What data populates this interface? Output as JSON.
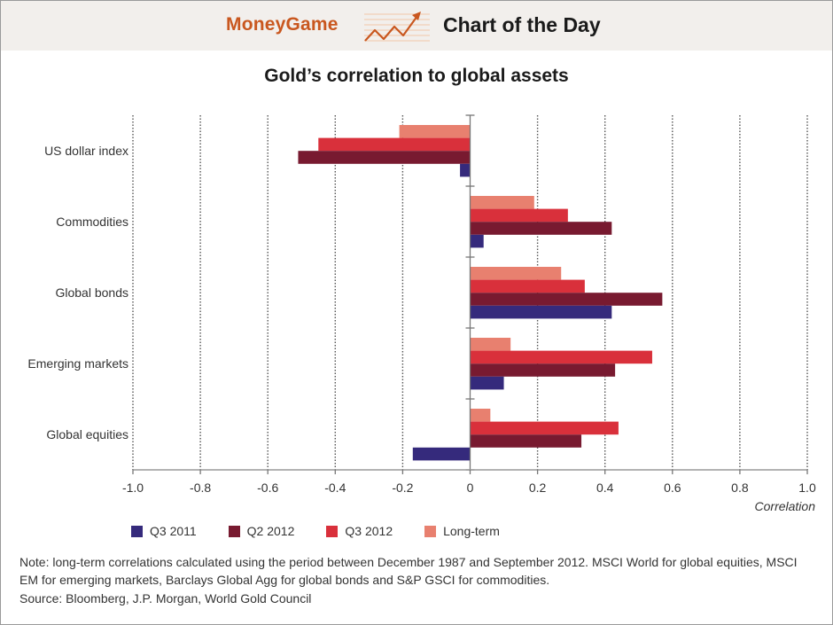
{
  "header": {
    "brand": "MoneyGame",
    "section": "Chart of the Day",
    "logo_icon": "rising-line-chart-icon",
    "brand_color": "#c9571f"
  },
  "chart_data": {
    "type": "bar",
    "orientation": "horizontal",
    "title": "Gold’s correlation to global assets",
    "xlabel": "Correlation",
    "ylabel": "",
    "xlim": [
      -1.0,
      1.0
    ],
    "x_ticks": [
      "-1.0",
      "-0.8",
      "-0.6",
      "-0.4",
      "-0.2",
      "0",
      "0.2",
      "0.4",
      "0.6",
      "0.8",
      "1.0"
    ],
    "x_tick_values": [
      -1.0,
      -0.8,
      -0.6,
      -0.4,
      -0.2,
      0,
      0.2,
      0.4,
      0.6,
      0.8,
      1.0
    ],
    "grid": "vertical dotted",
    "legend_position": "bottom-left",
    "categories": [
      "US dollar index",
      "Commodities",
      "Global bonds",
      "Emerging markets",
      "Global equities"
    ],
    "series": [
      {
        "name": "Long-term",
        "color": "#e8806f",
        "values": [
          -0.21,
          0.19,
          0.27,
          0.12,
          0.06
        ]
      },
      {
        "name": "Q3 2012",
        "color": "#d9303b",
        "values": [
          -0.45,
          0.29,
          0.34,
          0.54,
          0.44
        ]
      },
      {
        "name": "Q2 2012",
        "color": "#781a30",
        "values": [
          -0.51,
          0.42,
          0.57,
          0.43,
          0.33
        ]
      },
      {
        "name": "Q3 2011",
        "color": "#352a7c",
        "values": [
          -0.03,
          0.04,
          0.42,
          0.1,
          -0.17
        ]
      }
    ],
    "legend": [
      "Q3 2011",
      "Q2 2012",
      "Q3 2012",
      "Long-term"
    ]
  },
  "footer": {
    "note": "Note: long-term correlations calculated using the period between December 1987 and September 2012. MSCI World for global equities, MSCI EM for emerging markets, Barclays Global Agg for global bonds and S&P GSCI for commodities.",
    "source": "Source: Bloomberg, J.P. Morgan, World Gold Council"
  }
}
